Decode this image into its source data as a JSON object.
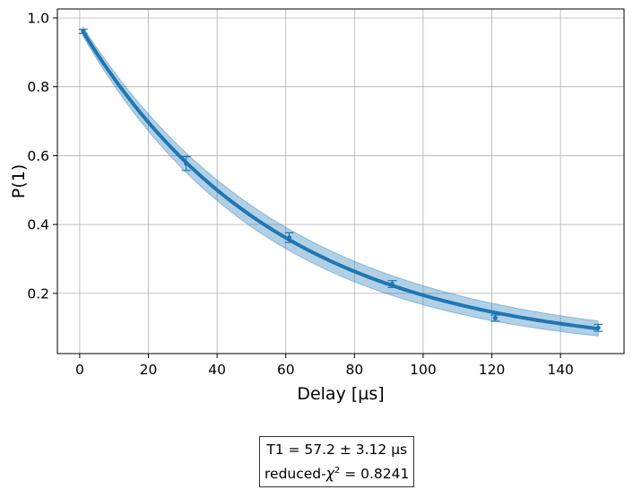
{
  "chart_data": {
    "type": "scatter",
    "xlabel": "Delay [µs]",
    "ylabel": "P(1)",
    "xlim": [
      -6.5,
      158.5
    ],
    "ylim": [
      0.025,
      1.026
    ],
    "xticks": [
      0,
      20,
      40,
      60,
      80,
      100,
      120,
      140
    ],
    "yticks": [
      0.2,
      0.4,
      0.6,
      0.8,
      1.0
    ],
    "grid": true,
    "color": "#1f77b4",
    "points": {
      "x": [
        1,
        31,
        61,
        91,
        121,
        151
      ],
      "y": [
        0.961,
        0.577,
        0.362,
        0.227,
        0.128,
        0.1
      ],
      "yerr": [
        0.006,
        0.02,
        0.014,
        0.01,
        0.009,
        0.01
      ]
    },
    "fit": {
      "model": "A*exp(-t/T1)+B",
      "A": 0.946,
      "T1": 57.2,
      "T1_err": 3.12,
      "B": 0.03,
      "x_range": [
        1,
        151
      ]
    },
    "annotation": {
      "line1": "T1 =   57.2 ±  3.12 µs",
      "line2_prefix": "reduced-",
      "line2_chi": "χ",
      "line2_sup": "2",
      "line2_suffix": " =  0.8241"
    }
  }
}
